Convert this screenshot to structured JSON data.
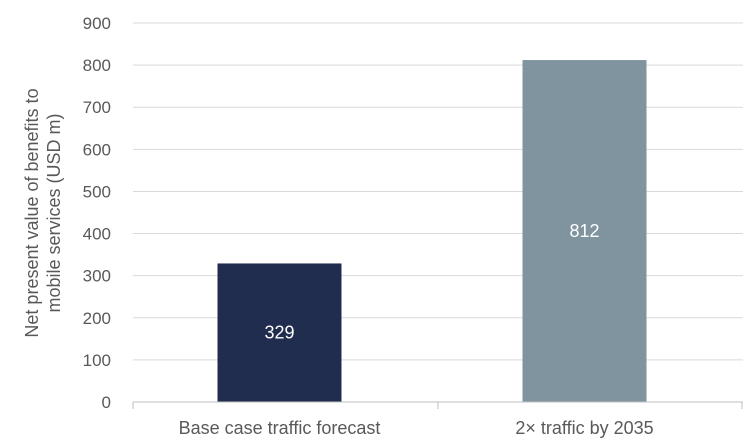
{
  "chart_data": {
    "type": "bar",
    "categories": [
      "Base case traffic forecast",
      "2× traffic by 2035"
    ],
    "values": [
      329,
      812
    ],
    "data_labels": [
      "329",
      "812"
    ],
    "ylabel_lines": [
      "Net present value of benefits to",
      "mobile services (USD m)"
    ],
    "ylim": [
      0,
      900
    ],
    "yticks": [
      0,
      100,
      200,
      300,
      400,
      500,
      600,
      700,
      800,
      900
    ],
    "grid": true,
    "legend": "none",
    "colors": [
      "#212d4f",
      "#7f949e"
    ],
    "grid_color": "#d9d9d9",
    "axis_color": "#bfbfbf"
  }
}
